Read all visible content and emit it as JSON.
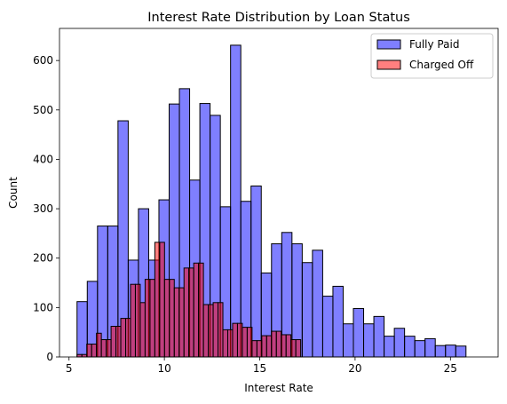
{
  "chart_data": {
    "type": "histogram",
    "title": "Interest Rate Distribution by Loan Status",
    "xlabel": "Interest Rate",
    "ylabel": "Count",
    "xlim": [
      4.5,
      27.5
    ],
    "ylim": [
      0,
      665
    ],
    "xticks": [
      5,
      10,
      15,
      20,
      25
    ],
    "yticks": [
      0,
      100,
      200,
      300,
      400,
      500,
      600
    ],
    "bin_start": 5.42,
    "bin_width": 0.5367,
    "legend_position": "top-right",
    "grid": false,
    "series": [
      {
        "name": "Fully Paid",
        "color": "#0000ff",
        "alpha": 0.5,
        "values": [
          112,
          153,
          265,
          265,
          478,
          196,
          300,
          196,
          318,
          512,
          543,
          358,
          513,
          489,
          304,
          631,
          315,
          346,
          170,
          229,
          252,
          229,
          191,
          216,
          123,
          143,
          67,
          98,
          67,
          82,
          42,
          58,
          42,
          33,
          37,
          23,
          24,
          22
        ]
      },
      {
        "name": "Charged Off",
        "color": "#ff0000",
        "alpha": 0.5,
        "values": [
          5,
          5,
          26,
          26,
          48,
          35,
          35,
          62,
          62,
          78,
          78,
          147,
          147,
          110,
          157,
          157,
          232,
          232,
          157,
          157,
          140,
          140,
          180,
          180,
          190,
          190,
          106,
          106,
          110,
          110,
          55,
          55,
          68,
          68,
          60,
          60,
          33,
          33,
          43,
          43,
          52,
          52,
          45,
          45,
          35,
          35
        ]
      }
    ]
  }
}
